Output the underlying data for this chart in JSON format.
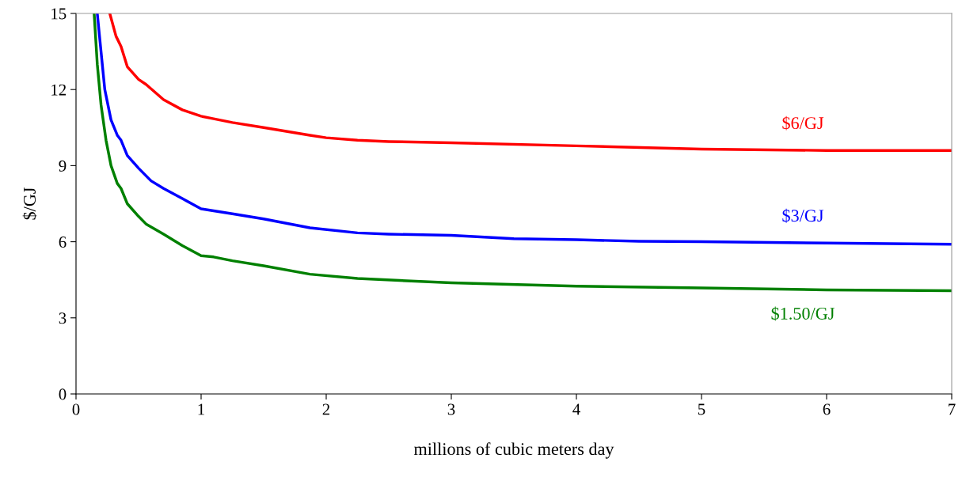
{
  "chart_data": {
    "type": "line",
    "xlabel": "millions of cubic meters day",
    "ylabel": "$/GJ",
    "xlim": [
      0,
      7
    ],
    "ylim": [
      0,
      15
    ],
    "xticks": [
      0,
      1,
      2,
      3,
      4,
      5,
      6,
      7
    ],
    "yticks": [
      0,
      3,
      6,
      9,
      12,
      15
    ],
    "grid": false,
    "marker": "none",
    "line_style": "solid",
    "series": [
      {
        "name": "$6/GJ",
        "color": "#ff0000",
        "x": [
          0.27,
          0.32,
          0.36,
          0.41,
          0.5,
          0.56,
          0.7,
          0.85,
          1.0,
          1.1,
          1.25,
          1.5,
          1.87,
          2,
          2.25,
          2.5,
          3,
          4,
          5,
          6,
          7
        ],
        "values": [
          15,
          14.1,
          13.7,
          12.9,
          12.4,
          12.2,
          11.6,
          11.2,
          10.95,
          10.85,
          10.7,
          10.5,
          10.2,
          10.1,
          10.0,
          9.95,
          9.9,
          9.78,
          9.65,
          9.6,
          9.6
        ]
      },
      {
        "name": "$3/GJ",
        "color": "#0000ff",
        "x": [
          0.17,
          0.2,
          0.23,
          0.28,
          0.33,
          0.36,
          0.41,
          0.5,
          0.6,
          0.7,
          0.85,
          1,
          1.1,
          1.25,
          1.5,
          1.87,
          2.25,
          2.5,
          3,
          3.5,
          4,
          4.5,
          5,
          6,
          7
        ],
        "values": [
          15,
          13.5,
          12,
          10.8,
          10.2,
          10.0,
          9.4,
          8.9,
          8.4,
          8.1,
          7.7,
          7.3,
          7.22,
          7.1,
          6.9,
          6.55,
          6.35,
          6.3,
          6.25,
          6.12,
          6.08,
          6.02,
          6.0,
          5.95,
          5.9
        ]
      },
      {
        "name": "$1.50/GJ",
        "color": "#008000",
        "x": [
          0.145,
          0.17,
          0.2,
          0.24,
          0.28,
          0.33,
          0.36,
          0.41,
          0.5,
          0.56,
          0.7,
          0.85,
          1,
          1.1,
          1.25,
          1.5,
          1.87,
          2.25,
          3,
          4,
          5,
          6,
          7
        ],
        "values": [
          15,
          13,
          11.4,
          10,
          9,
          8.3,
          8.1,
          7.5,
          7.0,
          6.7,
          6.3,
          5.85,
          5.45,
          5.4,
          5.25,
          5.05,
          4.72,
          4.55,
          4.38,
          4.25,
          4.18,
          4.1,
          4.07
        ]
      }
    ]
  }
}
